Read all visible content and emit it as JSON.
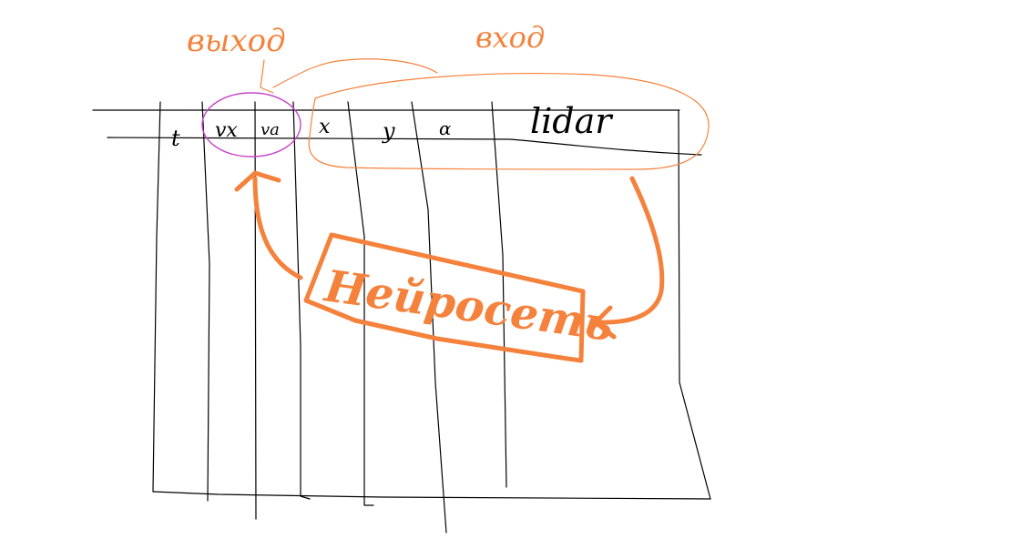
{
  "labels": {
    "output": "выход",
    "input": "вход",
    "neural_net": "Нейросеть"
  },
  "columns": {
    "t": "t",
    "vx": "vx",
    "va": "va",
    "x": "x",
    "y": "y",
    "alpha": "α",
    "lidar": "lidar"
  },
  "colors": {
    "ink": "#000000",
    "orange": "#f5823c",
    "magenta": "#c844c8",
    "background": "#ffffff"
  }
}
